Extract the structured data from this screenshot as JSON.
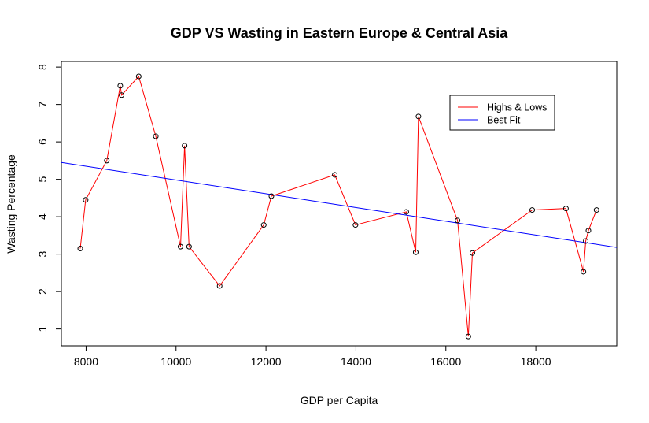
{
  "chart_data": {
    "type": "line",
    "title": "GDP VS Wasting in Eastern Europe & Central Asia",
    "xlabel": "GDP per Capita",
    "ylabel": "Wasting Percentage",
    "xlim": [
      7450,
      19800
    ],
    "ylim": [
      0.55,
      8.15
    ],
    "x_ticks": [
      8000,
      10000,
      12000,
      14000,
      16000,
      18000
    ],
    "y_ticks": [
      1,
      2,
      3,
      4,
      5,
      6,
      7,
      8
    ],
    "grid": false,
    "legend_position": "top-right",
    "colors": {
      "data": "#ff0000",
      "fit": "#0000ff",
      "points": "#000000"
    },
    "series": [
      {
        "name": "Highs & Lows",
        "color": "#ff0000",
        "markers": true,
        "points": [
          {
            "x": 7870,
            "y": 3.15
          },
          {
            "x": 7990,
            "y": 4.45
          },
          {
            "x": 8460,
            "y": 5.5
          },
          {
            "x": 8760,
            "y": 7.5
          },
          {
            "x": 8790,
            "y": 7.25
          },
          {
            "x": 9170,
            "y": 7.75
          },
          {
            "x": 9550,
            "y": 6.15
          },
          {
            "x": 10100,
            "y": 3.2
          },
          {
            "x": 10190,
            "y": 5.9
          },
          {
            "x": 10290,
            "y": 3.2
          },
          {
            "x": 10970,
            "y": 2.15
          },
          {
            "x": 11950,
            "y": 3.78
          },
          {
            "x": 12120,
            "y": 4.55
          },
          {
            "x": 13530,
            "y": 5.12
          },
          {
            "x": 13990,
            "y": 3.78
          },
          {
            "x": 15120,
            "y": 4.13
          },
          {
            "x": 15330,
            "y": 3.05
          },
          {
            "x": 15390,
            "y": 6.68
          },
          {
            "x": 16260,
            "y": 3.9
          },
          {
            "x": 16500,
            "y": 0.8
          },
          {
            "x": 16590,
            "y": 3.03
          },
          {
            "x": 17920,
            "y": 4.18
          },
          {
            "x": 18670,
            "y": 4.22
          },
          {
            "x": 19060,
            "y": 2.53
          },
          {
            "x": 19110,
            "y": 3.35
          },
          {
            "x": 19170,
            "y": 3.63
          },
          {
            "x": 19350,
            "y": 4.18
          }
        ]
      },
      {
        "name": "Best Fit",
        "color": "#0000ff",
        "markers": false,
        "points": [
          {
            "x": 7450,
            "y": 5.45
          },
          {
            "x": 19800,
            "y": 3.18
          }
        ]
      }
    ]
  }
}
